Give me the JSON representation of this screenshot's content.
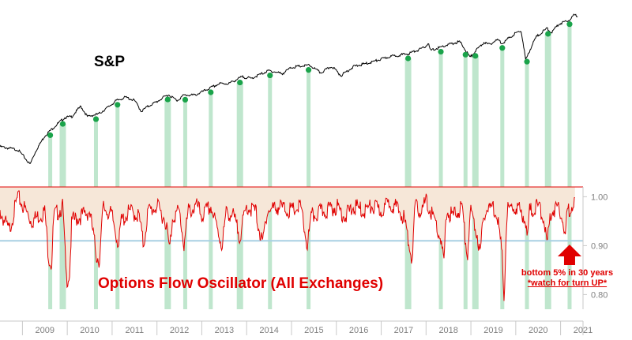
{
  "chart_data": {
    "type": "line",
    "panels": [
      {
        "name": "S&P",
        "label": "S&P",
        "series": [
          {
            "name": "S&P",
            "points": [
              [
                2008.5,
                690
              ],
              [
                2008.9,
                660
              ],
              [
                2009.17,
                540
              ],
              [
                2009.3,
                650
              ],
              [
                2009.5,
                800
              ],
              [
                2009.7,
                900
              ],
              [
                2009.95,
                1030
              ],
              [
                2010.1,
                1040
              ],
              [
                2010.3,
                1200
              ],
              [
                2010.45,
                1040
              ],
              [
                2010.55,
                1060
              ],
              [
                2010.7,
                1080
              ],
              [
                2010.9,
                1180
              ],
              [
                2011.1,
                1300
              ],
              [
                2011.3,
                1360
              ],
              [
                2011.5,
                1300
              ],
              [
                2011.65,
                1120
              ],
              [
                2011.8,
                1200
              ],
              [
                2012.0,
                1280
              ],
              [
                2012.25,
                1410
              ],
              [
                2012.45,
                1300
              ],
              [
                2012.6,
                1400
              ],
              [
                2012.85,
                1400
              ],
              [
                2013.0,
                1460
              ],
              [
                2013.4,
                1640
              ],
              [
                2013.6,
                1640
              ],
              [
                2013.9,
                1800
              ],
              [
                2014.1,
                1760
              ],
              [
                2014.5,
                1960
              ],
              [
                2014.8,
                1880
              ],
              [
                2015.0,
                2050
              ],
              [
                2015.4,
                2110
              ],
              [
                2015.65,
                1900
              ],
              [
                2015.9,
                2080
              ],
              [
                2016.1,
                1830
              ],
              [
                2016.4,
                2080
              ],
              [
                2016.7,
                2170
              ],
              [
                2016.9,
                2250
              ],
              [
                2017.2,
                2380
              ],
              [
                2017.6,
                2470
              ],
              [
                2017.95,
                2680
              ],
              [
                2018.05,
                2850
              ],
              [
                2018.1,
                2580
              ],
              [
                2018.5,
                2800
              ],
              [
                2018.75,
                2920
              ],
              [
                2018.98,
                2350
              ],
              [
                2019.3,
                2900
              ],
              [
                2019.4,
                2800
              ],
              [
                2019.6,
                3000
              ],
              [
                2019.7,
                2850
              ],
              [
                2020.0,
                3280
              ],
              [
                2020.12,
                3380
              ],
              [
                2020.22,
                2250
              ],
              [
                2020.45,
                3100
              ],
              [
                2020.7,
                3500
              ],
              [
                2020.8,
                3300
              ],
              [
                2020.95,
                3700
              ],
              [
                2021.2,
                3950
              ],
              [
                2021.3,
                4200
              ],
              [
                2021.38,
                4180
              ]
            ]
          }
        ]
      },
      {
        "name": "Options Flow Oscillator (All Exchanges)",
        "label": "Options Flow Oscillator (All Exchanges)",
        "ylim": [
          0.77,
          1.02
        ],
        "yticks": [
          "1.00",
          "0.90",
          "0.80"
        ],
        "threshold": 0.91,
        "series": [
          {
            "name": "Options Flow Oscillator (All Exchanges)",
            "color": "#e00000",
            "points": [
              [
                2008.5,
                0.97
              ],
              [
                2008.7,
                0.93
              ],
              [
                2008.9,
                1.0
              ],
              [
                2009.2,
                0.95
              ],
              [
                2009.5,
                0.97
              ],
              [
                2009.58,
                0.88
              ],
              [
                2009.65,
                0.86
              ],
              [
                2009.7,
                0.96
              ],
              [
                2009.9,
                0.98
              ],
              [
                2009.98,
                0.83
              ],
              [
                2010.05,
                0.84
              ],
              [
                2010.1,
                0.95
              ],
              [
                2010.3,
                0.96
              ],
              [
                2010.5,
                0.97
              ],
              [
                2010.65,
                0.88
              ],
              [
                2010.72,
                0.87
              ],
              [
                2010.8,
                0.98
              ],
              [
                2011.0,
                0.96
              ],
              [
                2011.15,
                0.9
              ],
              [
                2011.2,
                0.95
              ],
              [
                2011.4,
                0.97
              ],
              [
                2011.6,
                0.96
              ],
              [
                2011.7,
                0.9
              ],
              [
                2011.8,
                0.97
              ],
              [
                2012.0,
                0.98
              ],
              [
                2012.2,
                0.95
              ],
              [
                2012.28,
                0.89
              ],
              [
                2012.35,
                0.96
              ],
              [
                2012.5,
                0.97
              ],
              [
                2012.6,
                0.9
              ],
              [
                2012.7,
                0.97
              ],
              [
                2012.9,
                0.98
              ],
              [
                2013.0,
                0.96
              ],
              [
                2013.2,
                0.98
              ],
              [
                2013.45,
                0.9
              ],
              [
                2013.55,
                0.97
              ],
              [
                2013.7,
                0.96
              ],
              [
                2013.85,
                0.92
              ],
              [
                2014.0,
                0.98
              ],
              [
                2014.2,
                0.97
              ],
              [
                2014.35,
                0.9
              ],
              [
                2014.45,
                0.97
              ],
              [
                2014.7,
                0.98
              ],
              [
                2015.0,
                0.97
              ],
              [
                2015.2,
                0.98
              ],
              [
                2015.35,
                0.9
              ],
              [
                2015.45,
                0.96
              ],
              [
                2015.7,
                0.97
              ],
              [
                2016.0,
                0.98
              ],
              [
                2016.2,
                0.96
              ],
              [
                2016.4,
                0.98
              ],
              [
                2016.6,
                0.97
              ],
              [
                2016.8,
                0.98
              ],
              [
                2017.0,
                0.97
              ],
              [
                2017.2,
                0.99
              ],
              [
                2017.5,
                0.96
              ],
              [
                2017.65,
                0.89
              ],
              [
                2017.7,
                0.87
              ],
              [
                2017.75,
                0.98
              ],
              [
                2017.9,
                0.97
              ],
              [
                2018.0,
                0.99
              ],
              [
                2018.2,
                0.95
              ],
              [
                2018.33,
                0.91
              ],
              [
                2018.4,
                0.86
              ],
              [
                2018.45,
                0.97
              ],
              [
                2018.6,
                0.96
              ],
              [
                2018.8,
                0.98
              ],
              [
                2018.88,
                0.91
              ],
              [
                2018.92,
                0.88
              ],
              [
                2019.0,
                0.97
              ],
              [
                2019.15,
                0.92
              ],
              [
                2019.2,
                0.88
              ],
              [
                2019.3,
                0.97
              ],
              [
                2019.5,
                0.98
              ],
              [
                2019.6,
                0.96
              ],
              [
                2019.7,
                0.87
              ],
              [
                2019.74,
                0.79
              ],
              [
                2019.8,
                0.97
              ],
              [
                2020.0,
                0.98
              ],
              [
                2020.2,
                0.96
              ],
              [
                2020.26,
                0.91
              ],
              [
                2020.3,
                0.97
              ],
              [
                2020.5,
                0.98
              ],
              [
                2020.62,
                0.96
              ],
              [
                2020.7,
                0.9
              ],
              [
                2020.78,
                0.97
              ],
              [
                2020.95,
                0.98
              ],
              [
                2021.05,
                0.96
              ],
              [
                2021.1,
                0.91
              ],
              [
                2021.15,
                0.97
              ],
              [
                2021.3,
                0.99
              ]
            ]
          }
        ]
      }
    ],
    "x_axis": {
      "tick_labels": [
        "2009",
        "2010",
        "2011",
        "2012",
        "2013",
        "2014",
        "2015",
        "2016",
        "2017",
        "2018",
        "2019",
        "2020",
        "2021"
      ]
    },
    "signals": [
      2009.62,
      2009.9,
      2010.64,
      2011.12,
      2012.24,
      2012.63,
      2013.2,
      2013.85,
      2014.52,
      2015.38,
      2017.6,
      2018.33,
      2018.88,
      2019.1,
      2019.7,
      2020.25,
      2020.72,
      2021.2
    ],
    "annotation": {
      "line1": "bottom 5% in 30 years",
      "line2": "*watch for turn UP*"
    },
    "colors": {
      "sp_line": "#000000",
      "oscillator": "#e00000",
      "signal_band": "#bfe6cd",
      "signal_dot": "#1aa34a",
      "threshold": "#a8cfe3",
      "axis": "#c9c9c9",
      "arrow": "#e00000"
    }
  }
}
